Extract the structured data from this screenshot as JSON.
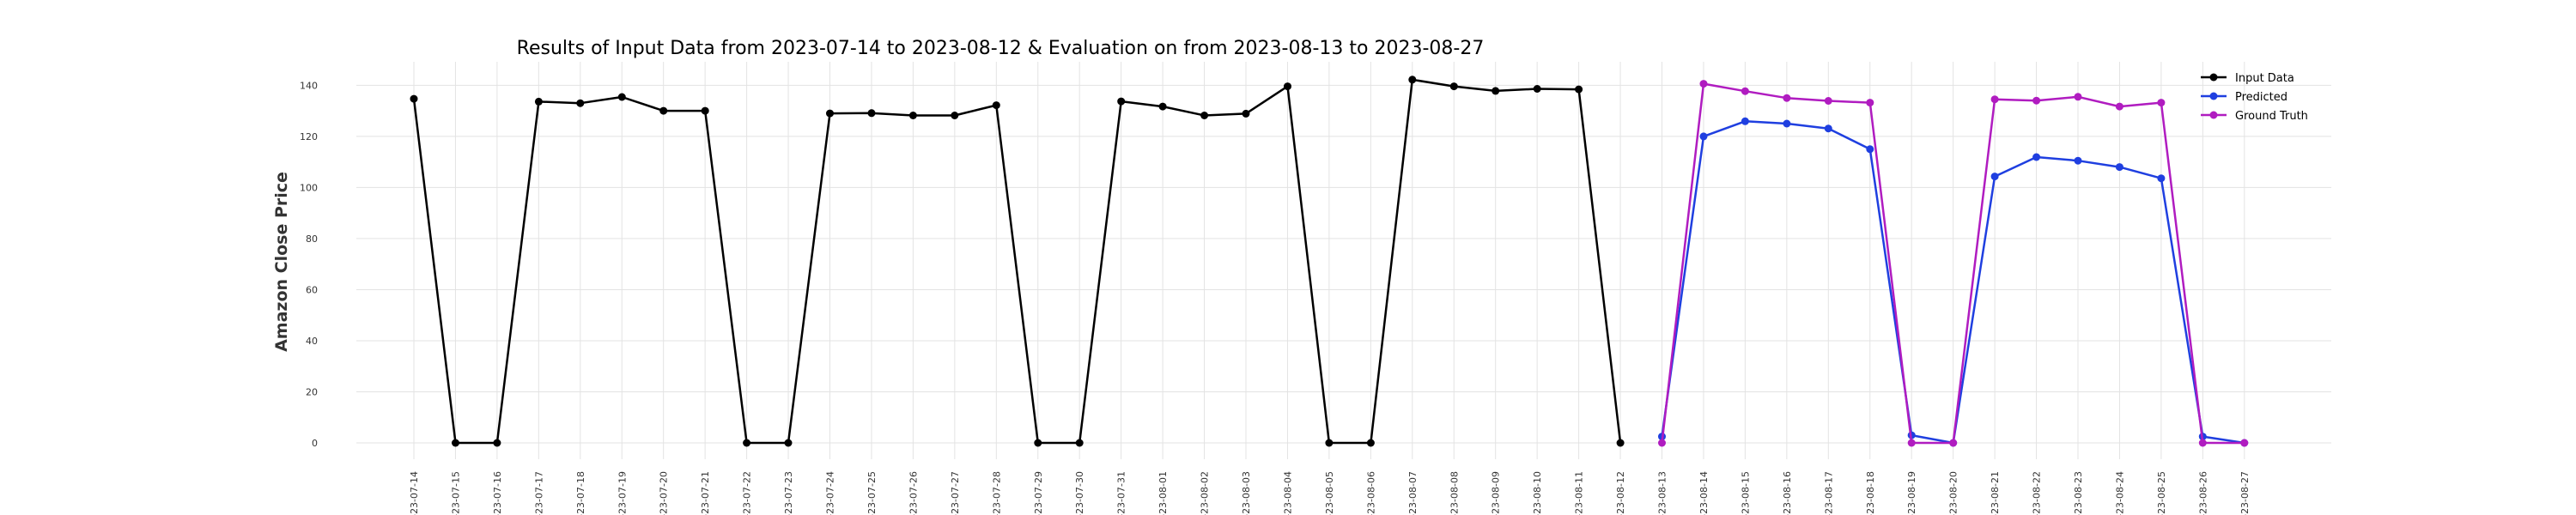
{
  "chart_data": {
    "type": "line",
    "title": "Results of Input Data from 2023-07-14 to 2023-08-12 & Evaluation on from 2023-08-13 to 2023-08-27",
    "ylabel": "Amazon Close Price",
    "xlabel": "",
    "ylim": [
      -10,
      150
    ],
    "yticks": [
      0,
      20,
      40,
      60,
      80,
      100,
      120,
      140
    ],
    "grid": true,
    "legend_position": "top-right",
    "categories": [
      "2023-07-14",
      "2023-07-15",
      "2023-07-16",
      "2023-07-17",
      "2023-07-18",
      "2023-07-19",
      "2023-07-20",
      "2023-07-21",
      "2023-07-22",
      "2023-07-23",
      "2023-07-24",
      "2023-07-25",
      "2023-07-26",
      "2023-07-27",
      "2023-07-28",
      "2023-07-29",
      "2023-07-30",
      "2023-07-31",
      "2023-08-01",
      "2023-08-02",
      "2023-08-03",
      "2023-08-04",
      "2023-08-05",
      "2023-08-06",
      "2023-08-07",
      "2023-08-08",
      "2023-08-09",
      "2023-08-10",
      "2023-08-11",
      "2023-08-12",
      "2023-08-13",
      "2023-08-14",
      "2023-08-15",
      "2023-08-16",
      "2023-08-17",
      "2023-08-18",
      "2023-08-19",
      "2023-08-20",
      "2023-08-21",
      "2023-08-22",
      "2023-08-23",
      "2023-08-24",
      "2023-08-25",
      "2023-08-26",
      "2023-08-27"
    ],
    "tick_labels": [
      "-23-07-14",
      "-23-07-15",
      "-23-07-16",
      "-23-07-17",
      "-23-07-18",
      "-23-07-19",
      "-23-07-20",
      "-23-07-21",
      "-23-07-22",
      "-23-07-23",
      "-23-07-24",
      "-23-07-25",
      "-23-07-26",
      "-23-07-27",
      "-23-07-28",
      "-23-07-29",
      "-23-07-30",
      "-23-07-31",
      "-23-08-01",
      "-23-08-02",
      "-23-08-03",
      "-23-08-04",
      "-23-08-05",
      "-23-08-06",
      "-23-08-07",
      "-23-08-08",
      "-23-08-09",
      "-23-08-10",
      "-23-08-11",
      "-23-08-12",
      "-23-08-13",
      "-23-08-14",
      "-23-08-15",
      "-23-08-16",
      "-23-08-17",
      "-23-08-18",
      "-23-08-19",
      "-23-08-20",
      "-23-08-21",
      "-23-08-22",
      "-23-08-23",
      "-23-08-24",
      "-23-08-25",
      "-23-08-26",
      "-23-08-27"
    ],
    "series": [
      {
        "name": "Input Data",
        "color": "#000000",
        "x": [
          "2023-07-14",
          "2023-07-15",
          "2023-07-16",
          "2023-07-17",
          "2023-07-18",
          "2023-07-19",
          "2023-07-20",
          "2023-07-21",
          "2023-07-22",
          "2023-07-23",
          "2023-07-24",
          "2023-07-25",
          "2023-07-26",
          "2023-07-27",
          "2023-07-28",
          "2023-07-29",
          "2023-07-30",
          "2023-07-31",
          "2023-08-01",
          "2023-08-02",
          "2023-08-03",
          "2023-08-04",
          "2023-08-05",
          "2023-08-06",
          "2023-08-07",
          "2023-08-08",
          "2023-08-09",
          "2023-08-10",
          "2023-08-11",
          "2023-08-12"
        ],
        "values": [
          134.7,
          0,
          0,
          133.6,
          133.0,
          135.4,
          130.0,
          130.0,
          0,
          0,
          129.0,
          129.1,
          128.2,
          128.2,
          132.2,
          0,
          0,
          133.7,
          131.7,
          128.2,
          128.9,
          139.6,
          0,
          0,
          142.2,
          139.6,
          137.8,
          138.6,
          138.4,
          0
        ]
      },
      {
        "name": "Predicted",
        "color": "#1f3fe0",
        "x": [
          "2023-08-13",
          "2023-08-14",
          "2023-08-15",
          "2023-08-16",
          "2023-08-17",
          "2023-08-18",
          "2023-08-19",
          "2023-08-20",
          "2023-08-21",
          "2023-08-22",
          "2023-08-23",
          "2023-08-24",
          "2023-08-25",
          "2023-08-26",
          "2023-08-27"
        ],
        "values": [
          2.5,
          120.0,
          125.9,
          125.0,
          123.1,
          115.0,
          3.0,
          0,
          104.3,
          111.9,
          110.5,
          108.0,
          103.6,
          2.5,
          0
        ]
      },
      {
        "name": "Ground Truth",
        "color": "#b01cc0",
        "x": [
          "2023-08-13",
          "2023-08-14",
          "2023-08-15",
          "2023-08-16",
          "2023-08-17",
          "2023-08-18",
          "2023-08-19",
          "2023-08-20",
          "2023-08-21",
          "2023-08-22",
          "2023-08-23",
          "2023-08-24",
          "2023-08-25",
          "2023-08-26",
          "2023-08-27"
        ],
        "values": [
          0,
          140.6,
          137.7,
          135.0,
          133.9,
          133.2,
          0,
          0,
          134.5,
          134.0,
          135.5,
          131.7,
          133.2,
          0,
          0
        ]
      }
    ]
  }
}
